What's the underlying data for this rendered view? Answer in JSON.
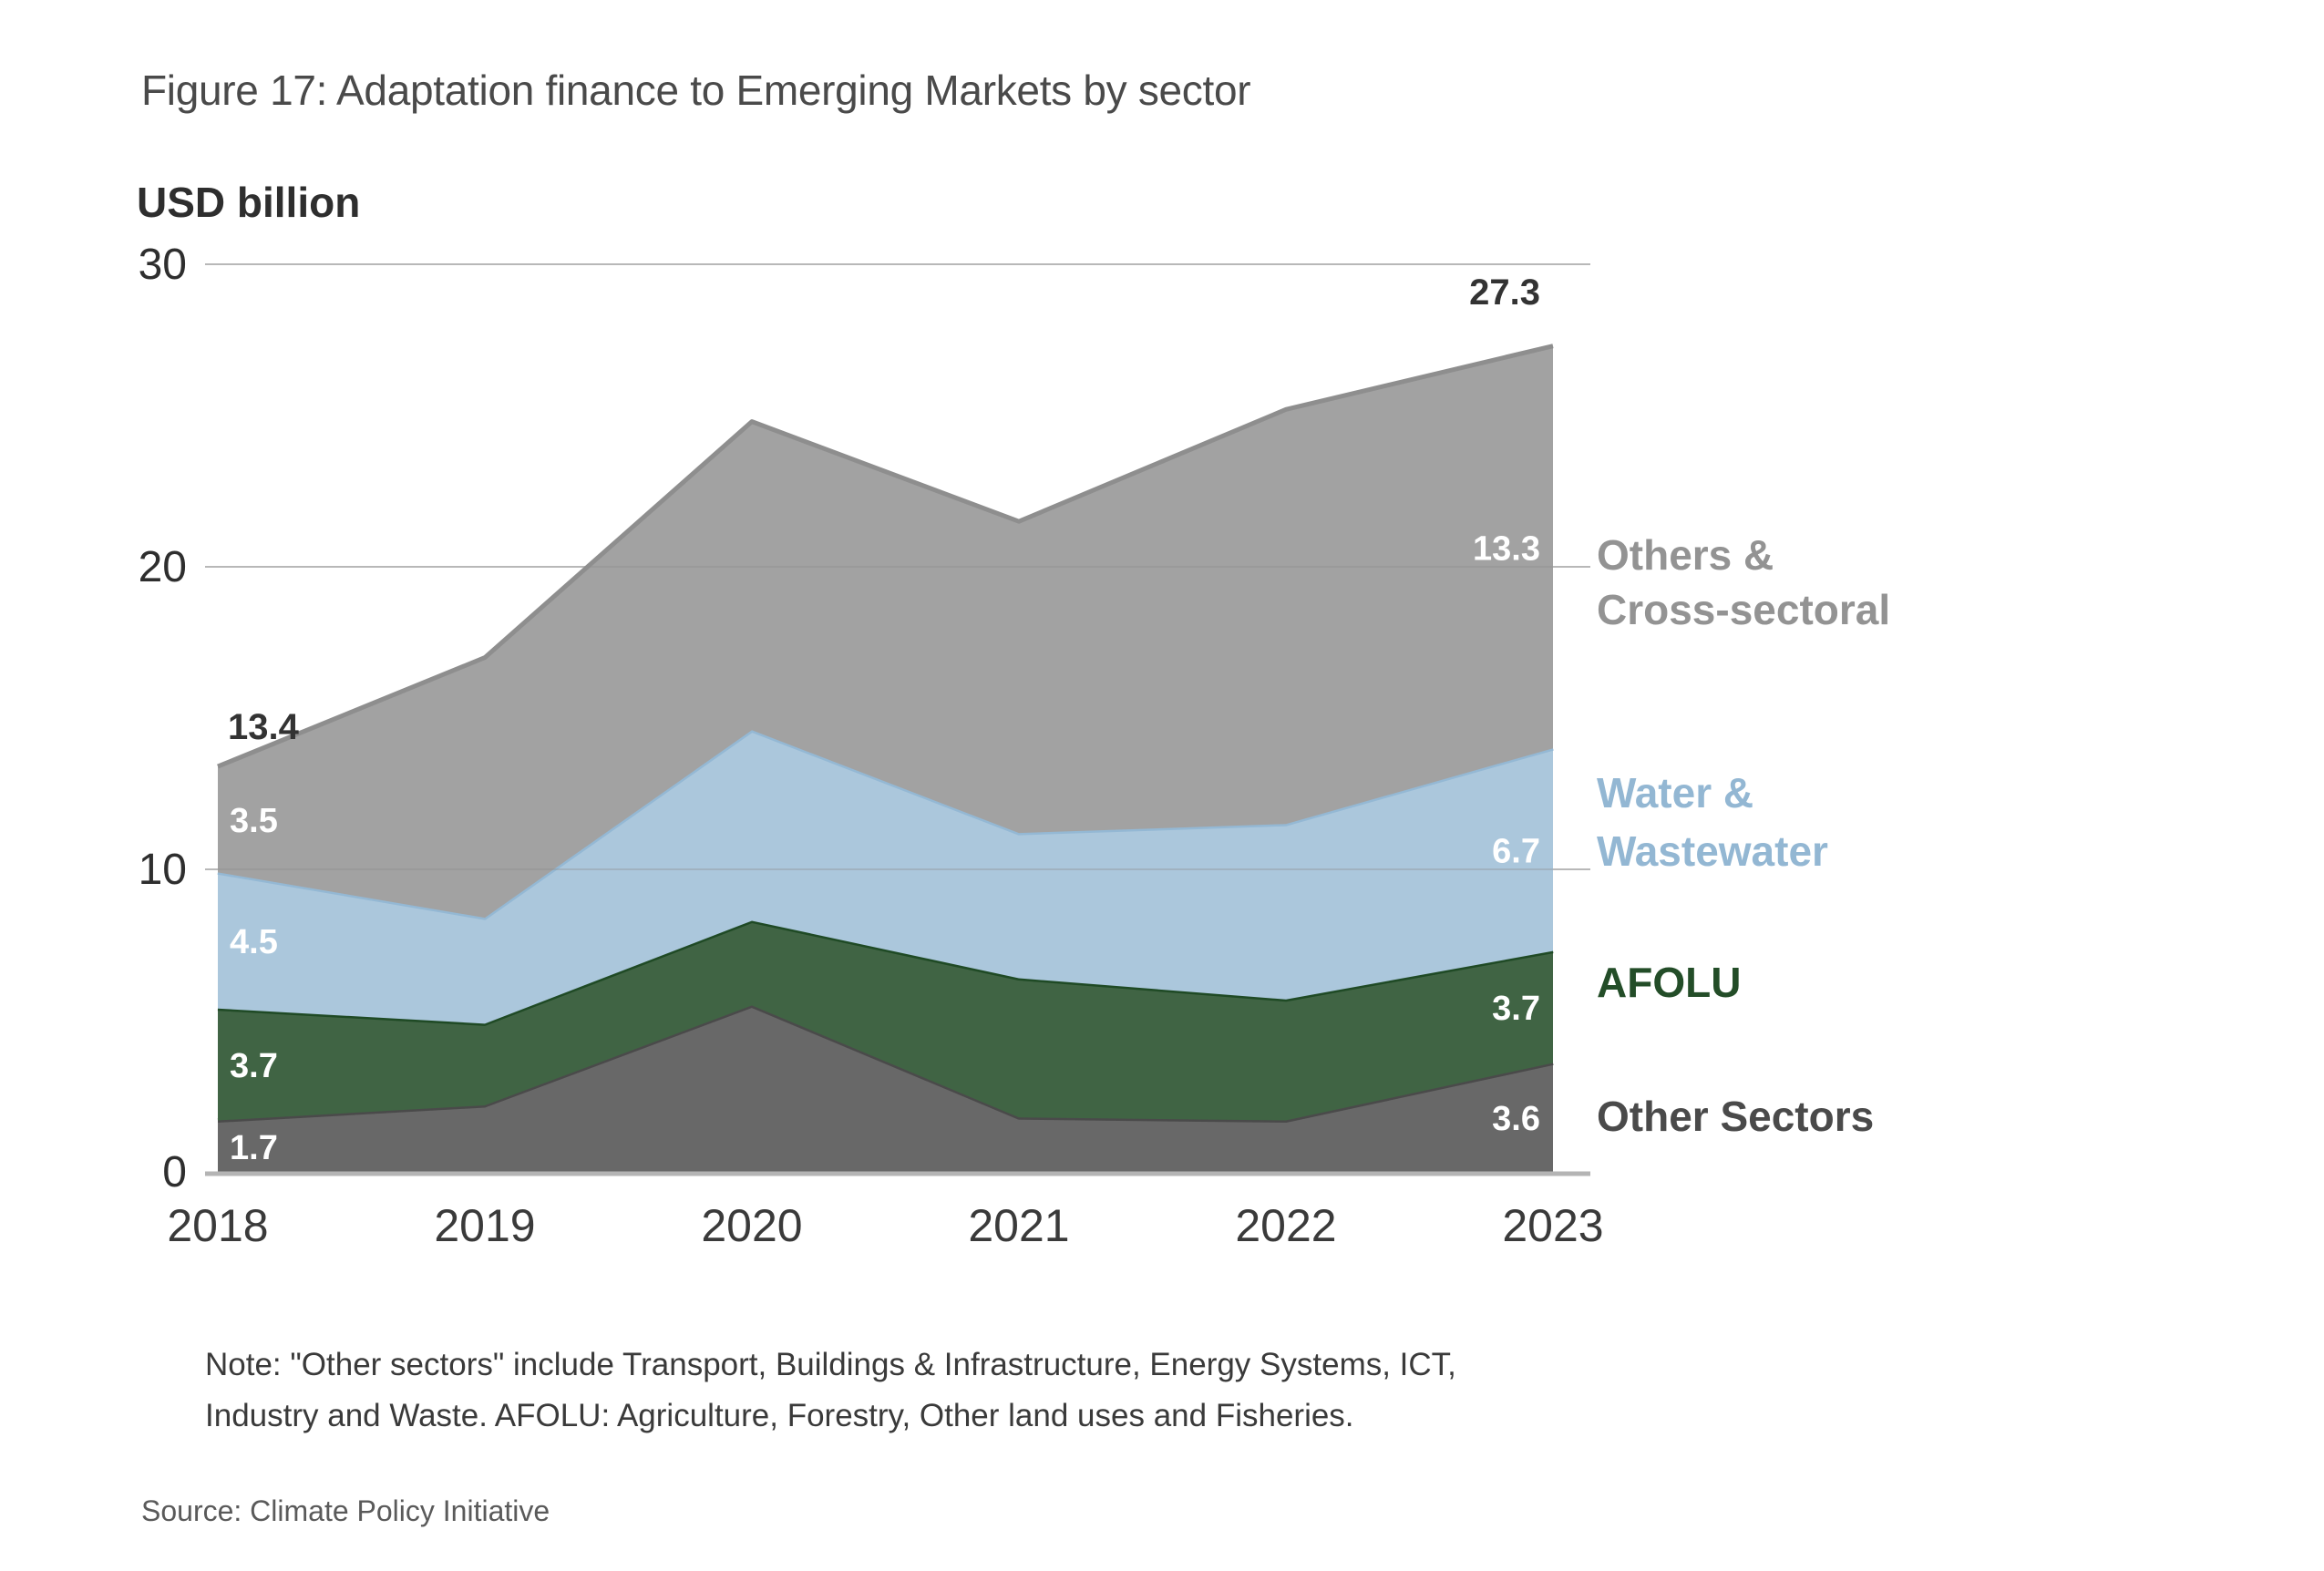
{
  "figure": {
    "title": "Figure 17: Adaptation finance to Emerging Markets by sector",
    "note_line1": "Note: \"Other sectors\" include Transport, Buildings & Infrastructure, Energy Systems, ICT,",
    "note_line2": "Industry and Waste. AFOLU: Agriculture, Forestry, Other land uses and Fisheries.",
    "source": "Source: Climate Policy Initiative"
  },
  "chart_data": {
    "type": "area",
    "stacked": true,
    "title": "Figure 17: Adaptation finance to Emerging Markets by sector",
    "ylabel": "USD billion",
    "xlabel": "",
    "ylim": [
      0,
      30
    ],
    "yticks": [
      0,
      10,
      20,
      30
    ],
    "grid": true,
    "categories": [
      "2018",
      "2019",
      "2020",
      "2021",
      "2022",
      "2023"
    ],
    "series": [
      {
        "name": "Other Sectors",
        "color": "#686868",
        "edge": "#4a4a4a",
        "label_color": "#4a4a4a",
        "values": [
          1.7,
          2.2,
          5.5,
          1.8,
          1.7,
          3.6
        ]
      },
      {
        "name": "AFOLU",
        "color": "#406444",
        "edge": "#1f4a25",
        "label_color": "#234d28",
        "values": [
          3.7,
          2.7,
          2.8,
          4.6,
          4.0,
          3.7
        ]
      },
      {
        "name": "Water & Wastewater",
        "color": "#abc7dc",
        "edge": "#94b8d4",
        "label_color": "#93b7d3",
        "values": [
          4.5,
          3.5,
          6.3,
          4.8,
          5.8,
          6.7
        ]
      },
      {
        "name": "Others & Cross-sectoral",
        "color": "#a2a2a2",
        "edge": "#8e8e8e",
        "label_color": "#939393",
        "values": [
          3.5,
          8.6,
          10.2,
          10.3,
          13.7,
          13.3
        ]
      }
    ],
    "totals": [
      13.4,
      17.0,
      24.8,
      21.5,
      25.2,
      27.3
    ],
    "data_labels": {
      "2018": {
        "Other Sectors": "1.7",
        "AFOLU": "3.7",
        "Water & Wastewater": "4.5",
        "Others & Cross-sectoral": "3.5",
        "total": "13.4"
      },
      "2023": {
        "Other Sectors": "3.6",
        "AFOLU": "3.7",
        "Water & Wastewater": "6.7",
        "Others & Cross-sectoral": "13.3",
        "total": "27.3"
      }
    },
    "legend": {
      "placement": "right",
      "entries": [
        {
          "lines": [
            "Others &",
            "Cross-sectoral"
          ],
          "color": "#939393"
        },
        {
          "lines": [
            "Water &",
            "Wastewater"
          ],
          "color": "#93b7d3"
        },
        {
          "lines": [
            "AFOLU"
          ],
          "color": "#234d28"
        },
        {
          "lines": [
            "Other Sectors"
          ],
          "color": "#4a4a4a"
        }
      ]
    }
  }
}
